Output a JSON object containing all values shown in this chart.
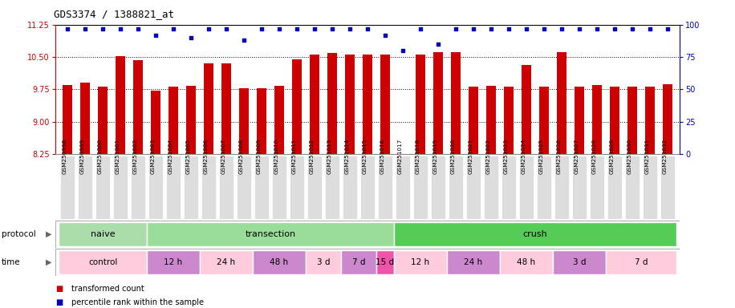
{
  "title": "GDS3374 / 1388821_at",
  "samples": [
    "GSM250998",
    "GSM250999",
    "GSM251000",
    "GSM251001",
    "GSM251002",
    "GSM251003",
    "GSM251004",
    "GSM251005",
    "GSM251006",
    "GSM251007",
    "GSM251008",
    "GSM251009",
    "GSM251010",
    "GSM251011",
    "GSM251012",
    "GSM251013",
    "GSM251014",
    "GSM251015",
    "GSM251016",
    "GSM251017",
    "GSM251018",
    "GSM251019",
    "GSM251020",
    "GSM251021",
    "GSM251022",
    "GSM251023",
    "GSM251024",
    "GSM251025",
    "GSM251026",
    "GSM251027",
    "GSM251028",
    "GSM251029",
    "GSM251030",
    "GSM251031",
    "GSM251032"
  ],
  "bar_values": [
    9.85,
    9.9,
    9.82,
    10.52,
    10.42,
    9.72,
    9.82,
    9.83,
    10.35,
    10.35,
    9.78,
    9.78,
    9.83,
    10.45,
    10.55,
    10.6,
    10.55,
    10.55,
    10.55,
    8.22,
    10.55,
    10.62,
    10.62,
    9.82,
    9.83,
    9.82,
    10.32,
    9.82,
    10.62,
    9.82,
    9.85,
    9.82,
    9.82,
    9.82,
    9.87
  ],
  "percentile_values": [
    97,
    97,
    97,
    97,
    97,
    92,
    97,
    90,
    97,
    97,
    88,
    97,
    97,
    97,
    97,
    97,
    97,
    97,
    92,
    80,
    97,
    85,
    97,
    97,
    97,
    97,
    97,
    97,
    97,
    97,
    97,
    97,
    97,
    97,
    97
  ],
  "ylim_left": [
    8.25,
    11.25
  ],
  "ylim_right": [
    0,
    100
  ],
  "yticks_left": [
    8.25,
    9.0,
    9.75,
    10.5,
    11.25
  ],
  "yticks_right": [
    0,
    25,
    50,
    75,
    100
  ],
  "bar_color": "#CC0000",
  "dot_color": "#0000BB",
  "bg_color": "#EEEEEE",
  "proto_naive_color": "#AADDAA",
  "proto_transection_color": "#99DD99",
  "proto_crush_color": "#55CC55",
  "time_light_pink": "#FFCCDD",
  "time_magenta": "#DD88CC",
  "time_bright_pink": "#EE66BB"
}
